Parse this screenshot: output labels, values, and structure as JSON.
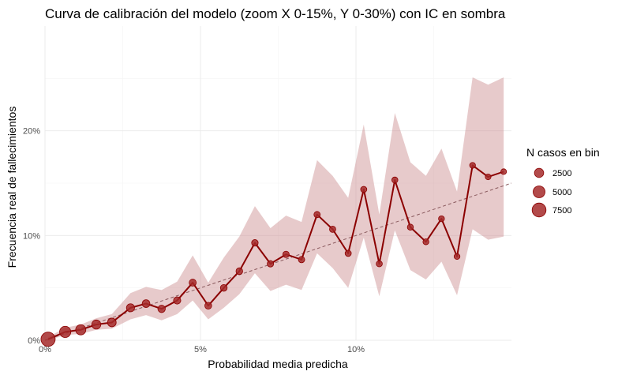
{
  "colors": {
    "line": "#8b0000",
    "ribbon": "#c98a8c",
    "point_fill": "#a52a2a",
    "grid_major": "#ebebeb",
    "grid_minor": "#f4f4f4",
    "diagonal": "#8a5a5e"
  },
  "chart_data": {
    "type": "line",
    "title": "Curva de calibración del modelo (zoom X 0-15%, Y 0-30%) con IC en sombra",
    "xlabel": "Probabilidad media predicha",
    "ylabel": "Frecuencia real de fallecimientos",
    "xlim": [
      0,
      0.15
    ],
    "ylim": [
      0,
      0.3
    ],
    "x_ticks": [
      0,
      0.05,
      0.1
    ],
    "x_tick_labels": [
      "0%",
      "5%",
      "10%"
    ],
    "y_ticks": [
      0,
      0.1,
      0.2
    ],
    "y_tick_labels": [
      "0%",
      "10%",
      "20%"
    ],
    "grid": true,
    "reference_line": "y = x",
    "legend": {
      "title": "N casos en bin",
      "position": "right",
      "entries": [
        {
          "label": "2500",
          "n": 2500
        },
        {
          "label": "5000",
          "n": 5000
        },
        {
          "label": "7500",
          "n": 7500
        }
      ]
    },
    "series": [
      {
        "x": [
          0.001,
          0.0065,
          0.0115,
          0.0165,
          0.0215,
          0.0275,
          0.0325,
          0.0375,
          0.0425,
          0.0475,
          0.0525,
          0.0575,
          0.0625,
          0.0675,
          0.0725,
          0.0775,
          0.0825,
          0.0875,
          0.0925,
          0.0975,
          0.1025,
          0.1075,
          0.1125,
          0.1175,
          0.1225,
          0.1275,
          0.1325,
          0.1375,
          0.1425,
          0.1475
        ],
        "y": [
          0.001,
          0.008,
          0.01,
          0.015,
          0.017,
          0.031,
          0.035,
          0.03,
          0.038,
          0.055,
          0.033,
          0.05,
          0.066,
          0.093,
          0.073,
          0.082,
          0.077,
          0.12,
          0.106,
          0.083,
          0.144,
          0.073,
          0.153,
          0.108,
          0.094,
          0.116,
          0.08,
          0.167,
          0.156,
          0.161
        ],
        "ci_low": [
          0.0,
          0.005,
          0.006,
          0.01,
          0.011,
          0.02,
          0.024,
          0.019,
          0.025,
          0.038,
          0.02,
          0.031,
          0.044,
          0.064,
          0.047,
          0.053,
          0.048,
          0.083,
          0.069,
          0.05,
          0.098,
          0.042,
          0.105,
          0.067,
          0.058,
          0.075,
          0.043,
          0.106,
          0.096,
          0.099
        ],
        "ci_high": [
          0.003,
          0.012,
          0.015,
          0.021,
          0.025,
          0.045,
          0.051,
          0.048,
          0.056,
          0.081,
          0.055,
          0.079,
          0.099,
          0.128,
          0.107,
          0.119,
          0.113,
          0.172,
          0.157,
          0.136,
          0.206,
          0.12,
          0.217,
          0.17,
          0.157,
          0.183,
          0.142,
          0.251,
          0.244,
          0.251
        ],
        "n": [
          7900,
          4300,
          3300,
          2400,
          2100,
          1700,
          1500,
          1300,
          1200,
          1100,
          1000,
          950,
          900,
          850,
          800,
          780,
          760,
          740,
          720,
          700,
          680,
          660,
          640,
          620,
          600,
          580,
          560,
          540,
          520,
          500
        ]
      }
    ]
  }
}
